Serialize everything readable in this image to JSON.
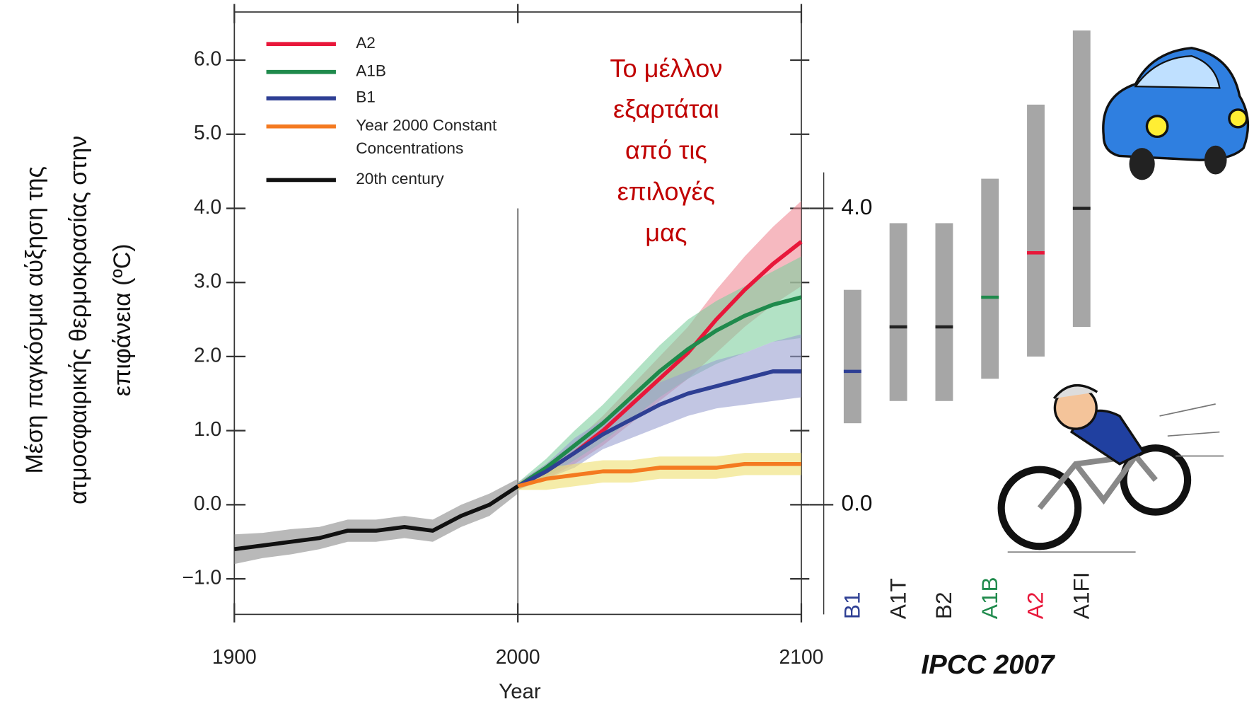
{
  "chart_data": [
    {
      "type": "line",
      "xlabel": "Year",
      "ylabel": [
        "Μέση παγκόσμια αύξηση της",
        "ατμοσφαιρικής θερμοκρασίας στην",
        "επιφάνεια (ºC)"
      ],
      "annotation": [
        "Το μέλλον",
        "εξαρτάται",
        "από τις",
        "επιλογές",
        "μας"
      ],
      "xlim": [
        1900,
        2100
      ],
      "xticks": [
        1900,
        2000,
        2100
      ],
      "ylim": [
        -1.48,
        6.65
      ],
      "yticks": [
        {
          "value": -1,
          "label": "−1.0"
        },
        {
          "value": 0,
          "label": "0.0"
        },
        {
          "value": 1,
          "label": "1.0"
        },
        {
          "value": 2,
          "label": "2.0"
        },
        {
          "value": 3,
          "label": "3.0"
        },
        {
          "value": 4,
          "label": "4.0"
        },
        {
          "value": 5,
          "label": "5.0"
        },
        {
          "value": 6,
          "label": "6.0"
        }
      ],
      "legend": "upper left",
      "series": [
        {
          "name": "A2",
          "color": "#e8173a",
          "band_color": "#f08a96",
          "x": [
            2000,
            2010,
            2020,
            2030,
            2040,
            2050,
            2060,
            2070,
            2080,
            2090,
            2100
          ],
          "values": [
            0.25,
            0.45,
            0.7,
            1.0,
            1.35,
            1.7,
            2.05,
            2.5,
            2.9,
            3.25,
            3.55
          ],
          "lower": [
            0.2,
            0.35,
            0.55,
            0.8,
            1.1,
            1.4,
            1.7,
            2.05,
            2.4,
            2.7,
            2.95
          ],
          "upper": [
            0.3,
            0.55,
            0.85,
            1.2,
            1.6,
            2.0,
            2.4,
            2.9,
            3.35,
            3.75,
            4.1
          ]
        },
        {
          "name": "A1B",
          "color": "#1f8a4c",
          "band_color": "#7fcf9f",
          "x": [
            2000,
            2010,
            2020,
            2030,
            2040,
            2050,
            2060,
            2070,
            2080,
            2090,
            2100
          ],
          "values": [
            0.25,
            0.5,
            0.8,
            1.1,
            1.45,
            1.8,
            2.1,
            2.35,
            2.55,
            2.7,
            2.8
          ],
          "lower": [
            0.2,
            0.38,
            0.6,
            0.85,
            1.15,
            1.45,
            1.7,
            1.9,
            2.05,
            2.2,
            2.25
          ],
          "upper": [
            0.3,
            0.62,
            1.0,
            1.35,
            1.75,
            2.15,
            2.5,
            2.75,
            2.95,
            3.15,
            3.35
          ]
        },
        {
          "name": "B1",
          "color": "#2e3f94",
          "band_color": "#9aa0d0",
          "x": [
            2000,
            2010,
            2020,
            2030,
            2040,
            2050,
            2060,
            2070,
            2080,
            2090,
            2100
          ],
          "values": [
            0.25,
            0.45,
            0.7,
            0.95,
            1.15,
            1.35,
            1.5,
            1.6,
            1.7,
            1.8,
            1.8
          ],
          "lower": [
            0.2,
            0.35,
            0.5,
            0.75,
            0.9,
            1.05,
            1.2,
            1.3,
            1.35,
            1.4,
            1.45
          ],
          "upper": [
            0.3,
            0.55,
            0.9,
            1.15,
            1.4,
            1.65,
            1.8,
            1.95,
            2.05,
            2.2,
            2.3
          ]
        },
        {
          "name": "Year 2000 Constant Concentrations",
          "color": "#f47a20",
          "band_color": "#eee070",
          "x": [
            2000,
            2010,
            2020,
            2030,
            2040,
            2050,
            2060,
            2070,
            2080,
            2090,
            2100
          ],
          "values": [
            0.25,
            0.35,
            0.4,
            0.45,
            0.45,
            0.5,
            0.5,
            0.5,
            0.55,
            0.55,
            0.55
          ],
          "lower": [
            0.2,
            0.2,
            0.25,
            0.3,
            0.3,
            0.35,
            0.35,
            0.35,
            0.4,
            0.4,
            0.4
          ],
          "upper": [
            0.3,
            0.5,
            0.55,
            0.6,
            0.6,
            0.65,
            0.65,
            0.65,
            0.7,
            0.7,
            0.7
          ]
        },
        {
          "name": "20th century",
          "color": "#111111",
          "band_color": "#8a8a8a",
          "x": [
            1900,
            1910,
            1920,
            1930,
            1940,
            1950,
            1960,
            1970,
            1980,
            1990,
            2000
          ],
          "values": [
            -0.6,
            -0.55,
            -0.5,
            -0.45,
            -0.35,
            -0.35,
            -0.3,
            -0.35,
            -0.15,
            0.0,
            0.25
          ],
          "lower": [
            -0.8,
            -0.72,
            -0.67,
            -0.6,
            -0.5,
            -0.5,
            -0.45,
            -0.5,
            -0.3,
            -0.15,
            0.15
          ],
          "upper": [
            -0.4,
            -0.38,
            -0.33,
            -0.3,
            -0.2,
            -0.2,
            -0.15,
            -0.2,
            0.0,
            0.15,
            0.35
          ]
        }
      ]
    },
    {
      "type": "floating_bar",
      "source": "IPCC 2007",
      "ylim": [
        -1.48,
        6.65
      ],
      "yticks": [
        {
          "value": 0,
          "label": "0.0"
        },
        {
          "value": 4,
          "label": "4.0"
        }
      ],
      "categories": [
        "B1",
        "A1T",
        "B2",
        "A1B",
        "A2",
        "A1FI"
      ],
      "label_colors": [
        "#2e3f94",
        "#222222",
        "#222222",
        "#1f8a4c",
        "#e8173a",
        "#222222"
      ],
      "bar_color": "#a6a6a6",
      "low": [
        1.1,
        1.4,
        1.4,
        1.7,
        2.0,
        2.4
      ],
      "high": [
        2.9,
        3.8,
        3.8,
        4.4,
        5.4,
        6.4
      ],
      "best": [
        1.8,
        2.4,
        2.4,
        2.8,
        3.4,
        4.0
      ]
    }
  ]
}
